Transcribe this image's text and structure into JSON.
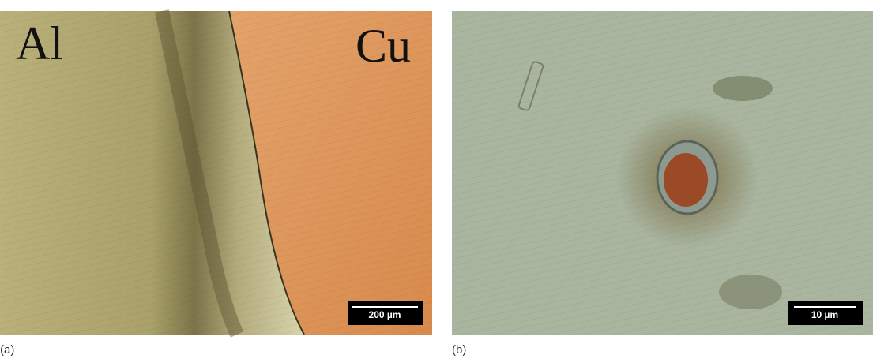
{
  "panels": [
    {
      "caption": "(a)",
      "labels": [
        "Al",
        "Cu"
      ],
      "scale_bar": "200 µm"
    },
    {
      "caption": "(b)",
      "scale_bar": "10 µm"
    }
  ]
}
